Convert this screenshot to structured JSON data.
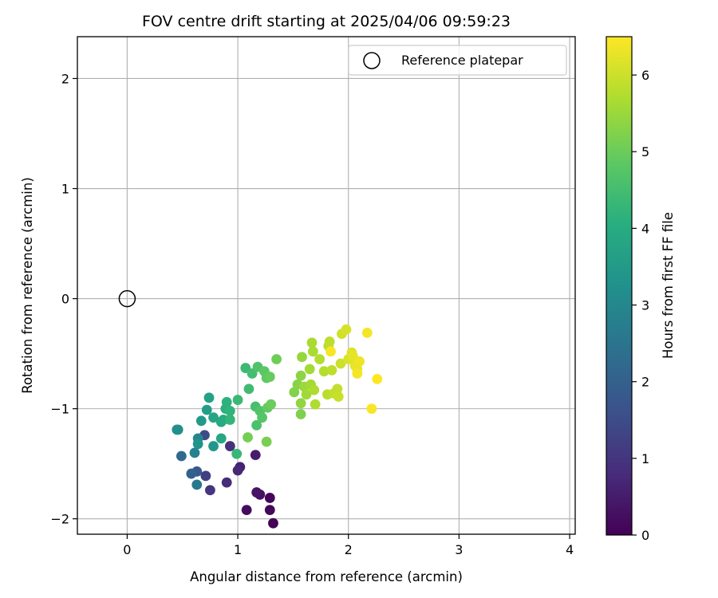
{
  "chart_data": {
    "type": "scatter",
    "title": "FOV centre drift starting at 2025/04/06 09:59:23",
    "xlabel": "Angular distance from reference (arcmin)",
    "ylabel": "Rotation from reference (arcmin)",
    "xlim": [
      -0.45,
      4.05
    ],
    "ylim": [
      -2.14,
      2.38
    ],
    "xticks": [
      0,
      1,
      2,
      3,
      4
    ],
    "yticks": [
      -2,
      -1,
      0,
      1,
      2
    ],
    "xtick_labels": [
      "0",
      "1",
      "2",
      "3",
      "4"
    ],
    "ytick_labels": [
      "−2",
      "−1",
      "0",
      "1",
      "2"
    ],
    "grid": true,
    "legend": {
      "label": "Reference platepar",
      "placement": "top-right"
    },
    "reference_point": {
      "x": 0,
      "y": 0
    },
    "colorbar": {
      "label": "Hours from first FF file",
      "range": [
        0,
        6.5
      ],
      "ticks": [
        0,
        1,
        2,
        3,
        4,
        5,
        6
      ],
      "tick_labels": [
        "0",
        "1",
        "2",
        "3",
        "4",
        "5",
        "6"
      ],
      "colormap": "viridis"
    },
    "points": [
      {
        "x": 1.32,
        "y": -2.04,
        "h": 0.05
      },
      {
        "x": 1.29,
        "y": -1.81,
        "h": 0.1
      },
      {
        "x": 1.29,
        "y": -1.92,
        "h": 0.15
      },
      {
        "x": 1.08,
        "y": -1.92,
        "h": 0.2
      },
      {
        "x": 1.2,
        "y": -1.78,
        "h": 0.3
      },
      {
        "x": 1.17,
        "y": -1.76,
        "h": 0.35
      },
      {
        "x": 1.16,
        "y": -1.42,
        "h": 0.5
      },
      {
        "x": 1.02,
        "y": -1.53,
        "h": 0.6
      },
      {
        "x": 1.0,
        "y": -1.56,
        "h": 0.7
      },
      {
        "x": 0.9,
        "y": -1.67,
        "h": 0.8
      },
      {
        "x": 0.93,
        "y": -1.34,
        "h": 0.9
      },
      {
        "x": 0.75,
        "y": -1.74,
        "h": 1.0
      },
      {
        "x": 0.71,
        "y": -1.61,
        "h": 1.2
      },
      {
        "x": 0.7,
        "y": -1.24,
        "h": 1.5
      },
      {
        "x": 0.63,
        "y": -1.57,
        "h": 1.8
      },
      {
        "x": 0.58,
        "y": -1.59,
        "h": 2.0
      },
      {
        "x": 0.49,
        "y": -1.43,
        "h": 2.2
      },
      {
        "x": 0.63,
        "y": -1.69,
        "h": 2.6
      },
      {
        "x": 0.61,
        "y": -1.4,
        "h": 2.8
      },
      {
        "x": 0.64,
        "y": -1.27,
        "h": 3.0
      },
      {
        "x": 0.46,
        "y": -1.19,
        "h": 3.1
      },
      {
        "x": 0.45,
        "y": -1.19,
        "h": 3.2
      },
      {
        "x": 0.64,
        "y": -1.32,
        "h": 3.3
      },
      {
        "x": 0.78,
        "y": -1.34,
        "h": 3.4
      },
      {
        "x": 0.67,
        "y": -1.11,
        "h": 3.5
      },
      {
        "x": 0.72,
        "y": -1.01,
        "h": 3.6
      },
      {
        "x": 0.74,
        "y": -0.9,
        "h": 3.7
      },
      {
        "x": 0.78,
        "y": -1.08,
        "h": 3.8
      },
      {
        "x": 0.85,
        "y": -1.27,
        "h": 3.85
      },
      {
        "x": 0.85,
        "y": -1.12,
        "h": 3.9
      },
      {
        "x": 0.87,
        "y": -1.1,
        "h": 4.0
      },
      {
        "x": 0.89,
        "y": -1.0,
        "h": 4.1
      },
      {
        "x": 0.9,
        "y": -0.94,
        "h": 4.15
      },
      {
        "x": 0.93,
        "y": -1.02,
        "h": 4.2
      },
      {
        "x": 0.93,
        "y": -1.1,
        "h": 4.25
      },
      {
        "x": 0.99,
        "y": -1.41,
        "h": 4.3
      },
      {
        "x": 1.0,
        "y": -0.92,
        "h": 4.35
      },
      {
        "x": 1.07,
        "y": -0.63,
        "h": 4.4
      },
      {
        "x": 1.1,
        "y": -0.82,
        "h": 4.45
      },
      {
        "x": 1.13,
        "y": -0.68,
        "h": 4.5
      },
      {
        "x": 1.16,
        "y": -0.98,
        "h": 4.55
      },
      {
        "x": 1.17,
        "y": -1.15,
        "h": 4.6
      },
      {
        "x": 1.18,
        "y": -0.62,
        "h": 4.65
      },
      {
        "x": 1.2,
        "y": -1.02,
        "h": 4.7
      },
      {
        "x": 1.22,
        "y": -1.08,
        "h": 4.75
      },
      {
        "x": 1.24,
        "y": -0.66,
        "h": 4.8
      },
      {
        "x": 1.26,
        "y": -0.72,
        "h": 4.85
      },
      {
        "x": 1.27,
        "y": -0.99,
        "h": 4.9
      },
      {
        "x": 1.29,
        "y": -0.71,
        "h": 4.95
      },
      {
        "x": 1.3,
        "y": -0.96,
        "h": 5.0
      },
      {
        "x": 1.35,
        "y": -0.55,
        "h": 5.05
      },
      {
        "x": 1.09,
        "y": -1.26,
        "h": 5.1
      },
      {
        "x": 1.26,
        "y": -1.3,
        "h": 5.15
      },
      {
        "x": 1.57,
        "y": -1.05,
        "h": 5.2
      },
      {
        "x": 1.51,
        "y": -0.85,
        "h": 5.25
      },
      {
        "x": 1.54,
        "y": -0.78,
        "h": 5.3
      },
      {
        "x": 1.57,
        "y": -0.7,
        "h": 5.35
      },
      {
        "x": 1.57,
        "y": -0.95,
        "h": 5.4
      },
      {
        "x": 1.58,
        "y": -0.53,
        "h": 5.45
      },
      {
        "x": 1.6,
        "y": -0.8,
        "h": 5.5
      },
      {
        "x": 1.62,
        "y": -0.87,
        "h": 5.55
      },
      {
        "x": 1.65,
        "y": -0.64,
        "h": 5.6
      },
      {
        "x": 1.66,
        "y": -0.78,
        "h": 5.6
      },
      {
        "x": 1.67,
        "y": -0.4,
        "h": 5.65
      },
      {
        "x": 1.68,
        "y": -0.48,
        "h": 5.65
      },
      {
        "x": 1.69,
        "y": -0.83,
        "h": 5.7
      },
      {
        "x": 1.7,
        "y": -0.96,
        "h": 5.7
      },
      {
        "x": 1.74,
        "y": -0.55,
        "h": 5.75
      },
      {
        "x": 1.78,
        "y": -0.66,
        "h": 5.75
      },
      {
        "x": 1.81,
        "y": -0.87,
        "h": 5.8
      },
      {
        "x": 1.82,
        "y": -0.43,
        "h": 5.8
      },
      {
        "x": 1.83,
        "y": -0.39,
        "h": 5.85
      },
      {
        "x": 1.85,
        "y": -0.65,
        "h": 5.85
      },
      {
        "x": 1.87,
        "y": -0.86,
        "h": 5.9
      },
      {
        "x": 1.9,
        "y": -0.82,
        "h": 5.9
      },
      {
        "x": 1.91,
        "y": -0.89,
        "h": 5.95
      },
      {
        "x": 1.93,
        "y": -0.59,
        "h": 6.0
      },
      {
        "x": 1.94,
        "y": -0.32,
        "h": 6.05
      },
      {
        "x": 1.98,
        "y": -0.28,
        "h": 6.1
      },
      {
        "x": 2.0,
        "y": -0.55,
        "h": 6.15
      },
      {
        "x": 2.03,
        "y": -0.49,
        "h": 6.2
      },
      {
        "x": 2.04,
        "y": -0.52,
        "h": 6.25
      },
      {
        "x": 2.06,
        "y": -0.61,
        "h": 6.3
      },
      {
        "x": 2.08,
        "y": -0.64,
        "h": 6.3
      },
      {
        "x": 2.1,
        "y": -0.57,
        "h": 6.35
      },
      {
        "x": 2.17,
        "y": -0.31,
        "h": 6.4
      },
      {
        "x": 2.21,
        "y": -1.0,
        "h": 6.45
      },
      {
        "x": 2.26,
        "y": -0.73,
        "h": 6.5
      },
      {
        "x": 1.84,
        "y": -0.48,
        "h": 6.45
      },
      {
        "x": 2.08,
        "y": -0.68,
        "h": 6.4
      }
    ]
  }
}
